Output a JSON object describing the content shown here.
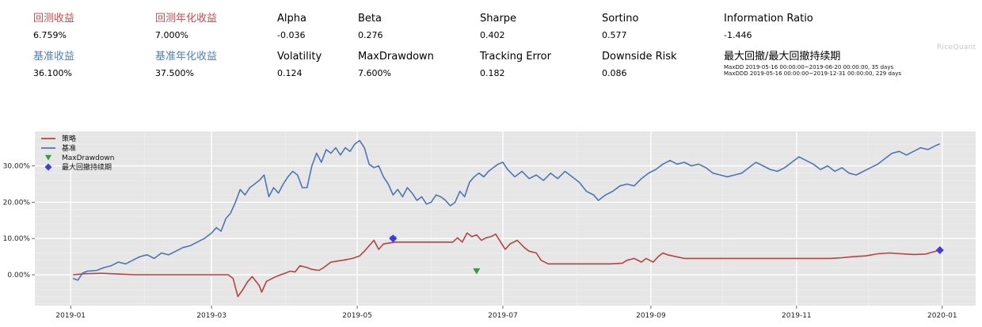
{
  "metrics": [
    {
      "label": "回测收益",
      "value": "6.759%",
      "color": "red"
    },
    {
      "label": "回测年化收益",
      "value": "7.000%",
      "color": "red"
    },
    {
      "label": "Alpha",
      "value": "-0.036",
      "color": "black"
    },
    {
      "label": "Beta",
      "value": "0.276",
      "color": "black"
    },
    {
      "label": "Sharpe",
      "value": "0.402",
      "color": "black"
    },
    {
      "label": "Sortino",
      "value": "0.577",
      "color": "black"
    },
    {
      "label": "Information Ratio",
      "value": "-1.446",
      "color": "black"
    },
    {
      "label": "基准收益",
      "value": "36.100%",
      "color": "blue"
    },
    {
      "label": "基准年化收益",
      "value": "37.500%",
      "color": "blue"
    },
    {
      "label": "Volatility",
      "value": "0.124",
      "color": "black"
    },
    {
      "label": "MaxDrawdown",
      "value": "7.600%",
      "color": "black"
    },
    {
      "label": "Tracking Error",
      "value": "0.182",
      "color": "black"
    },
    {
      "label": "Downside Risk",
      "value": "0.086",
      "color": "black"
    }
  ],
  "max_drawdown_duration": {
    "label": "最大回撤/最大回撤持续期",
    "line1": "MaxDD  2019-05-16 00:00:00~2019-06-20 00:00:00, 35 days",
    "line2": "MaxDDD 2019-05-16 00:00:00~2019-12-31 00:00:00, 229 days"
  },
  "brand": "RiceQuant",
  "colors": {
    "strategy": "#b5433f",
    "benchmark": "#4a76b4",
    "maxdd_marker": "#2e9e3a",
    "maxddd_marker": "#3a3af0",
    "plot_bg": "#e6e6e6",
    "red_label": "#c0504d",
    "blue_label": "#4f81bd"
  },
  "chart_data": {
    "type": "line",
    "title": "",
    "xlabel": "",
    "ylabel": "",
    "x_ticks": [
      "2019-01",
      "2019-03",
      "2019-05",
      "2019-07",
      "2019-09",
      "2019-11",
      "2020-01"
    ],
    "y_ticks": [
      "0.00%",
      "10.00%",
      "20.00%",
      "30.00%"
    ],
    "ylim": [
      -8.5,
      39.5
    ],
    "xlim": [
      "2018-12-17",
      "2020-01-15"
    ],
    "grid": true,
    "legend_position": "top-left",
    "series": [
      {
        "name": "策略",
        "color": "#b5433f",
        "points": [
          [
            "2019-01-02",
            0.0
          ],
          [
            "2019-01-07",
            0.3
          ],
          [
            "2019-01-14",
            0.4
          ],
          [
            "2019-01-21",
            0.2
          ],
          [
            "2019-01-28",
            0.0
          ],
          [
            "2019-02-15",
            0.0
          ],
          [
            "2019-03-04",
            0.0
          ],
          [
            "2019-03-08",
            0.0
          ],
          [
            "2019-03-10",
            -1.0
          ],
          [
            "2019-03-12",
            -6.0
          ],
          [
            "2019-03-14",
            -4.2
          ],
          [
            "2019-03-16",
            -2.0
          ],
          [
            "2019-03-18",
            -0.5
          ],
          [
            "2019-03-21",
            -3.0
          ],
          [
            "2019-03-22",
            -4.8
          ],
          [
            "2019-03-24",
            -1.8
          ],
          [
            "2019-03-28",
            -0.5
          ],
          [
            "2019-04-01",
            0.5
          ],
          [
            "2019-04-03",
            1.0
          ],
          [
            "2019-04-05",
            0.8
          ],
          [
            "2019-04-07",
            2.5
          ],
          [
            "2019-04-10",
            2.0
          ],
          [
            "2019-04-12",
            1.5
          ],
          [
            "2019-04-15",
            1.2
          ],
          [
            "2019-04-17",
            2.0
          ],
          [
            "2019-04-20",
            3.5
          ],
          [
            "2019-04-23",
            3.8
          ],
          [
            "2019-04-25",
            4.0
          ],
          [
            "2019-04-29",
            4.5
          ],
          [
            "2019-05-02",
            5.2
          ],
          [
            "2019-05-04",
            6.5
          ],
          [
            "2019-05-06",
            8.0
          ],
          [
            "2019-05-08",
            9.5
          ],
          [
            "2019-05-10",
            7.0
          ],
          [
            "2019-05-12",
            8.5
          ],
          [
            "2019-05-15",
            8.8
          ],
          [
            "2019-05-17",
            9.0
          ],
          [
            "2019-05-20",
            9.0
          ],
          [
            "2019-06-05",
            9.0
          ],
          [
            "2019-06-10",
            9.0
          ],
          [
            "2019-06-12",
            10.2
          ],
          [
            "2019-06-14",
            9.0
          ],
          [
            "2019-06-16",
            11.5
          ],
          [
            "2019-06-18",
            10.5
          ],
          [
            "2019-06-20",
            11.0
          ],
          [
            "2019-06-22",
            9.5
          ],
          [
            "2019-06-24",
            10.2
          ],
          [
            "2019-06-26",
            10.5
          ],
          [
            "2019-06-28",
            11.2
          ],
          [
            "2019-07-02",
            7.0
          ],
          [
            "2019-07-04",
            8.5
          ],
          [
            "2019-07-07",
            9.5
          ],
          [
            "2019-07-10",
            7.5
          ],
          [
            "2019-07-12",
            6.5
          ],
          [
            "2019-07-15",
            6.0
          ],
          [
            "2019-07-17",
            4.0
          ],
          [
            "2019-07-20",
            3.0
          ],
          [
            "2019-07-25",
            3.0
          ],
          [
            "2019-08-05",
            3.0
          ],
          [
            "2019-08-15",
            3.0
          ],
          [
            "2019-08-20",
            3.2
          ],
          [
            "2019-08-22",
            4.0
          ],
          [
            "2019-08-25",
            4.5
          ],
          [
            "2019-08-28",
            3.5
          ],
          [
            "2019-08-30",
            4.5
          ],
          [
            "2019-09-02",
            3.5
          ],
          [
            "2019-09-04",
            5.0
          ],
          [
            "2019-09-06",
            6.0
          ],
          [
            "2019-09-08",
            5.5
          ],
          [
            "2019-09-10",
            5.2
          ],
          [
            "2019-09-15",
            4.5
          ],
          [
            "2019-09-30",
            4.5
          ],
          [
            "2019-10-15",
            4.5
          ],
          [
            "2019-10-31",
            4.5
          ],
          [
            "2019-11-15",
            4.5
          ],
          [
            "2019-11-20",
            4.7
          ],
          [
            "2019-11-25",
            5.0
          ],
          [
            "2019-11-30",
            5.2
          ],
          [
            "2019-12-05",
            5.8
          ],
          [
            "2019-12-10",
            6.0
          ],
          [
            "2019-12-15",
            5.8
          ],
          [
            "2019-12-20",
            5.6
          ],
          [
            "2019-12-25",
            5.7
          ],
          [
            "2019-12-31",
            6.8
          ]
        ]
      },
      {
        "name": "基准",
        "color": "#4a76b4",
        "points": [
          [
            "2019-01-02",
            -1.0
          ],
          [
            "2019-01-04",
            -1.5
          ],
          [
            "2019-01-06",
            0.5
          ],
          [
            "2019-01-08",
            1.0
          ],
          [
            "2019-01-12",
            1.2
          ],
          [
            "2019-01-15",
            2.0
          ],
          [
            "2019-01-18",
            2.5
          ],
          [
            "2019-01-21",
            3.5
          ],
          [
            "2019-01-24",
            3.0
          ],
          [
            "2019-01-27",
            4.0
          ],
          [
            "2019-01-30",
            5.0
          ],
          [
            "2019-02-02",
            5.5
          ],
          [
            "2019-02-05",
            4.5
          ],
          [
            "2019-02-08",
            6.0
          ],
          [
            "2019-02-11",
            5.5
          ],
          [
            "2019-02-14",
            6.5
          ],
          [
            "2019-02-17",
            7.5
          ],
          [
            "2019-02-20",
            8.0
          ],
          [
            "2019-02-23",
            9.0
          ],
          [
            "2019-02-26",
            10.0
          ],
          [
            "2019-03-01",
            11.5
          ],
          [
            "2019-03-03",
            13.0
          ],
          [
            "2019-03-05",
            12.0
          ],
          [
            "2019-03-07",
            15.5
          ],
          [
            "2019-03-09",
            17.0
          ],
          [
            "2019-03-11",
            20.0
          ],
          [
            "2019-03-13",
            23.5
          ],
          [
            "2019-03-15",
            22.0
          ],
          [
            "2019-03-17",
            24.0
          ],
          [
            "2019-03-19",
            25.0
          ],
          [
            "2019-03-21",
            26.0
          ],
          [
            "2019-03-23",
            27.5
          ],
          [
            "2019-03-25",
            21.5
          ],
          [
            "2019-03-27",
            24.0
          ],
          [
            "2019-03-29",
            22.5
          ],
          [
            "2019-03-31",
            25.0
          ],
          [
            "2019-04-02",
            27.0
          ],
          [
            "2019-04-04",
            28.5
          ],
          [
            "2019-04-06",
            27.5
          ],
          [
            "2019-04-08",
            24.0
          ],
          [
            "2019-04-10",
            24.0
          ],
          [
            "2019-04-12",
            30.0
          ],
          [
            "2019-04-14",
            33.5
          ],
          [
            "2019-04-16",
            31.0
          ],
          [
            "2019-04-18",
            34.5
          ],
          [
            "2019-04-20",
            33.5
          ],
          [
            "2019-04-22",
            35.0
          ],
          [
            "2019-04-24",
            33.0
          ],
          [
            "2019-04-26",
            35.0
          ],
          [
            "2019-04-28",
            34.0
          ],
          [
            "2019-04-30",
            36.0
          ],
          [
            "2019-05-02",
            37.0
          ],
          [
            "2019-05-04",
            35.0
          ],
          [
            "2019-05-06",
            30.5
          ],
          [
            "2019-05-08",
            29.5
          ],
          [
            "2019-05-10",
            30.0
          ],
          [
            "2019-05-12",
            27.0
          ],
          [
            "2019-05-14",
            25.0
          ],
          [
            "2019-05-16",
            22.0
          ],
          [
            "2019-05-18",
            23.5
          ],
          [
            "2019-05-20",
            21.5
          ],
          [
            "2019-05-22",
            24.0
          ],
          [
            "2019-05-24",
            22.5
          ],
          [
            "2019-05-26",
            20.5
          ],
          [
            "2019-05-28",
            21.5
          ],
          [
            "2019-05-30",
            19.5
          ],
          [
            "2019-06-01",
            20.0
          ],
          [
            "2019-06-03",
            22.0
          ],
          [
            "2019-06-05",
            21.5
          ],
          [
            "2019-06-07",
            20.5
          ],
          [
            "2019-06-09",
            19.0
          ],
          [
            "2019-06-11",
            20.0
          ],
          [
            "2019-06-13",
            23.0
          ],
          [
            "2019-06-15",
            21.5
          ],
          [
            "2019-06-17",
            25.5
          ],
          [
            "2019-06-19",
            27.0
          ],
          [
            "2019-06-21",
            28.0
          ],
          [
            "2019-06-23",
            27.0
          ],
          [
            "2019-06-25",
            28.5
          ],
          [
            "2019-06-27",
            29.5
          ],
          [
            "2019-06-29",
            30.5
          ],
          [
            "2019-07-01",
            31.0
          ],
          [
            "2019-07-03",
            29.0
          ],
          [
            "2019-07-06",
            27.0
          ],
          [
            "2019-07-09",
            28.5
          ],
          [
            "2019-07-12",
            26.5
          ],
          [
            "2019-07-15",
            27.5
          ],
          [
            "2019-07-18",
            26.0
          ],
          [
            "2019-07-21",
            28.0
          ],
          [
            "2019-07-24",
            26.5
          ],
          [
            "2019-07-27",
            28.5
          ],
          [
            "2019-07-30",
            27.0
          ],
          [
            "2019-08-02",
            25.5
          ],
          [
            "2019-08-05",
            23.0
          ],
          [
            "2019-08-08",
            22.0
          ],
          [
            "2019-08-10",
            20.5
          ],
          [
            "2019-08-13",
            22.0
          ],
          [
            "2019-08-16",
            23.0
          ],
          [
            "2019-08-19",
            24.5
          ],
          [
            "2019-08-22",
            25.0
          ],
          [
            "2019-08-25",
            24.5
          ],
          [
            "2019-08-28",
            26.5
          ],
          [
            "2019-08-31",
            28.0
          ],
          [
            "2019-09-03",
            29.0
          ],
          [
            "2019-09-06",
            30.5
          ],
          [
            "2019-09-09",
            31.5
          ],
          [
            "2019-09-12",
            30.5
          ],
          [
            "2019-09-15",
            31.0
          ],
          [
            "2019-09-18",
            30.0
          ],
          [
            "2019-09-21",
            30.5
          ],
          [
            "2019-09-24",
            29.5
          ],
          [
            "2019-09-27",
            28.0
          ],
          [
            "2019-09-30",
            27.5
          ],
          [
            "2019-10-03",
            27.0
          ],
          [
            "2019-10-06",
            27.5
          ],
          [
            "2019-10-09",
            28.0
          ],
          [
            "2019-10-12",
            29.5
          ],
          [
            "2019-10-15",
            31.0
          ],
          [
            "2019-10-18",
            30.0
          ],
          [
            "2019-10-21",
            29.0
          ],
          [
            "2019-10-24",
            28.5
          ],
          [
            "2019-10-27",
            29.5
          ],
          [
            "2019-10-30",
            31.0
          ],
          [
            "2019-11-02",
            32.5
          ],
          [
            "2019-11-05",
            31.5
          ],
          [
            "2019-11-08",
            30.5
          ],
          [
            "2019-11-11",
            29.0
          ],
          [
            "2019-11-14",
            30.0
          ],
          [
            "2019-11-17",
            28.5
          ],
          [
            "2019-11-20",
            29.5
          ],
          [
            "2019-11-23",
            28.0
          ],
          [
            "2019-11-26",
            27.5
          ],
          [
            "2019-11-29",
            28.5
          ],
          [
            "2019-12-02",
            29.5
          ],
          [
            "2019-12-05",
            30.5
          ],
          [
            "2019-12-08",
            32.0
          ],
          [
            "2019-12-11",
            33.5
          ],
          [
            "2019-12-14",
            34.0
          ],
          [
            "2019-12-17",
            33.0
          ],
          [
            "2019-12-20",
            34.0
          ],
          [
            "2019-12-23",
            35.0
          ],
          [
            "2019-12-26",
            34.5
          ],
          [
            "2019-12-29",
            35.5
          ],
          [
            "2019-12-31",
            36.1
          ]
        ]
      }
    ],
    "markers": [
      {
        "name": "MaxDrawdown",
        "shape": "triangle-down",
        "color": "#2e9e3a",
        "points": [
          [
            "2019-05-16",
            9.8
          ],
          [
            "2019-06-20",
            1.0
          ]
        ]
      },
      {
        "name": "最大回撤持续期",
        "shape": "diamond",
        "color": "#3a3af0",
        "points": [
          [
            "2019-05-16",
            10.0
          ],
          [
            "2019-12-31",
            6.8
          ]
        ]
      }
    ]
  }
}
